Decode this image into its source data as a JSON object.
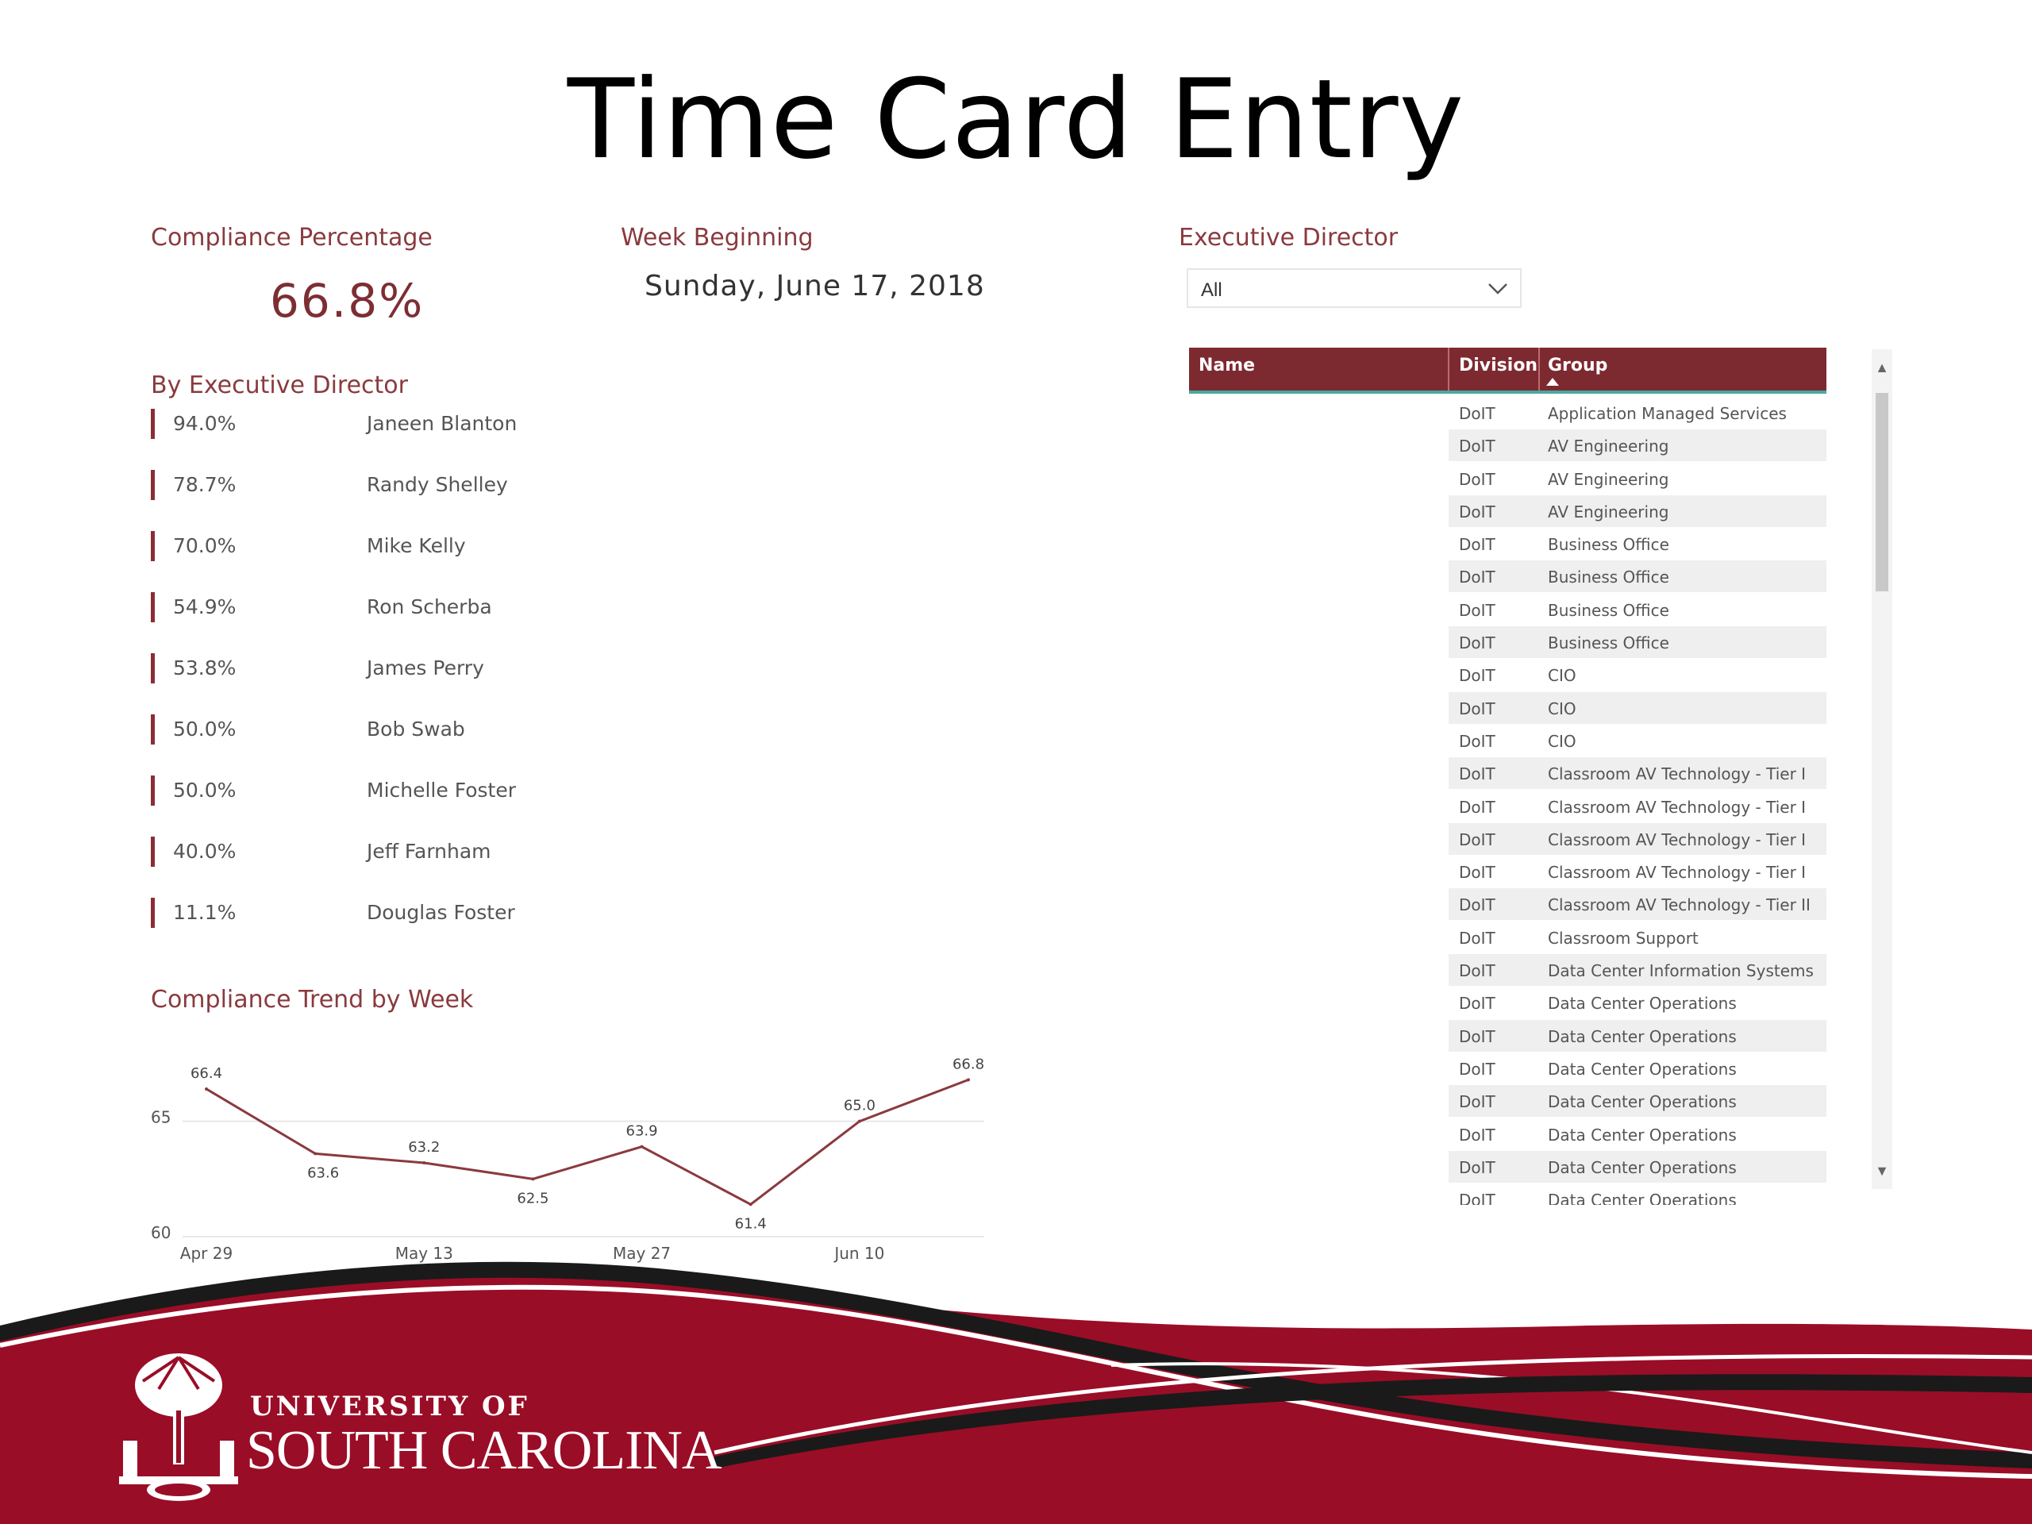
{
  "page": {
    "title": "Time Card Entry"
  },
  "compliance": {
    "label": "Compliance Percentage",
    "value": "66.8%"
  },
  "week": {
    "label": "Week Beginning",
    "value": "Sunday, June 17, 2018"
  },
  "exec_filter": {
    "label": "Executive Director",
    "selected": "All",
    "icon": "chevron-down-icon"
  },
  "by_exec": {
    "label": "By Executive Director",
    "rows": [
      {
        "pct": "94.0%",
        "name": "Janeen Blanton"
      },
      {
        "pct": "78.7%",
        "name": "Randy Shelley"
      },
      {
        "pct": "70.0%",
        "name": "Mike Kelly"
      },
      {
        "pct": "54.9%",
        "name": "Ron Scherba"
      },
      {
        "pct": "53.8%",
        "name": "James Perry"
      },
      {
        "pct": "50.0%",
        "name": "Bob Swab"
      },
      {
        "pct": "50.0%",
        "name": "Michelle Foster"
      },
      {
        "pct": "40.0%",
        "name": "Jeff Farnham"
      },
      {
        "pct": "11.1%",
        "name": "Douglas Foster"
      }
    ],
    "bar_color": "#8a2e35"
  },
  "trend": {
    "label": "Compliance Trend by Week"
  },
  "chart_data": {
    "type": "line",
    "x": [
      "Apr 29",
      "May 6",
      "May 13",
      "May 20",
      "May 27",
      "Jun 3",
      "Jun 10",
      "Jun 17"
    ],
    "tick_labels": [
      "Apr 29",
      "May 13",
      "May 27",
      "Jun 10"
    ],
    "values": [
      66.4,
      63.6,
      63.2,
      62.5,
      63.9,
      61.4,
      65.0,
      66.8
    ],
    "data_labels": [
      "66.4",
      "63.6",
      "63.2",
      "62.5",
      "63.9",
      "61.4",
      "65.0",
      "66.8"
    ],
    "y_ticks": [
      60,
      65
    ],
    "ylim": [
      60,
      67.5
    ],
    "grid": true,
    "line_color": "#8a3a3e",
    "title": "",
    "xlabel": "",
    "ylabel": ""
  },
  "table": {
    "columns": [
      "Name",
      "Division",
      "Group"
    ],
    "sort_column": "Group",
    "rows": [
      {
        "name": "",
        "division": "DoIT",
        "group": "Application Managed Services"
      },
      {
        "name": "",
        "division": "DoIT",
        "group": "AV Engineering"
      },
      {
        "name": "",
        "division": "DoIT",
        "group": "AV Engineering"
      },
      {
        "name": "",
        "division": "DoIT",
        "group": "AV Engineering"
      },
      {
        "name": "",
        "division": "DoIT",
        "group": "Business Office"
      },
      {
        "name": "",
        "division": "DoIT",
        "group": "Business Office"
      },
      {
        "name": "",
        "division": "DoIT",
        "group": "Business Office"
      },
      {
        "name": "",
        "division": "DoIT",
        "group": "Business Office"
      },
      {
        "name": "",
        "division": "DoIT",
        "group": "CIO"
      },
      {
        "name": "",
        "division": "DoIT",
        "group": "CIO"
      },
      {
        "name": "",
        "division": "DoIT",
        "group": "CIO"
      },
      {
        "name": "",
        "division": "DoIT",
        "group": "Classroom AV Technology - Tier I"
      },
      {
        "name": "",
        "division": "DoIT",
        "group": "Classroom AV Technology - Tier I"
      },
      {
        "name": "",
        "division": "DoIT",
        "group": "Classroom AV Technology - Tier I"
      },
      {
        "name": "",
        "division": "DoIT",
        "group": "Classroom AV Technology - Tier I"
      },
      {
        "name": "",
        "division": "DoIT",
        "group": "Classroom AV Technology - Tier II"
      },
      {
        "name": "",
        "division": "DoIT",
        "group": "Classroom Support"
      },
      {
        "name": "",
        "division": "DoIT",
        "group": "Data Center Information Systems"
      },
      {
        "name": "",
        "division": "DoIT",
        "group": "Data Center Operations"
      },
      {
        "name": "",
        "division": "DoIT",
        "group": "Data Center Operations"
      },
      {
        "name": "",
        "division": "DoIT",
        "group": "Data Center Operations"
      },
      {
        "name": "",
        "division": "DoIT",
        "group": "Data Center Operations"
      },
      {
        "name": "",
        "division": "DoIT",
        "group": "Data Center Operations"
      },
      {
        "name": "",
        "division": "DoIT",
        "group": "Data Center Operations"
      },
      {
        "name": "",
        "division": "DoIT",
        "group": "Data Center Operations"
      }
    ],
    "header_color": "#7d2930",
    "accent_color": "#4aa8a0",
    "scroll_up_icon": "▲",
    "scroll_down_icon": "▼"
  },
  "footer": {
    "university_of": "UNIVERSITY OF",
    "university_name": "SOUTH CAROLINA",
    "logo_icon": "palmetto-logo-icon",
    "brand_color": "#9a0d27"
  }
}
